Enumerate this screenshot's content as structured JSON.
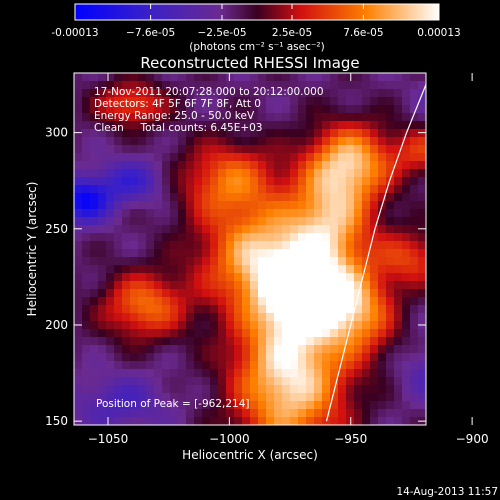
{
  "chart_data": {
    "type": "heatmap",
    "title": "Reconstructed RHESSI Image",
    "xlabel": "Heliocentric X (arcsec)",
    "ylabel": "Heliocentric Y (arcsec)",
    "xlim": [
      -1064,
      -919
    ],
    "ylim": [
      148,
      331
    ],
    "xticks": [
      -1050,
      -1000,
      -950,
      -900
    ],
    "yticks": [
      150,
      200,
      250,
      300
    ],
    "colorbar": {
      "min": -0.00013,
      "max": 0.00013,
      "ticks": [
        -0.00013,
        -7.6e-05,
        -2.5e-05,
        2.5e-05,
        7.6e-05,
        0.00013
      ],
      "tick_labels": [
        "-0.00013",
        "−7.6e-05",
        "−2.5e-05",
        "2.5e-05",
        "7.6e-05",
        "0.00013"
      ],
      "unit_label": "(photons cm⁻² s⁻¹ asec⁻²)"
    },
    "info_lines": [
      "17-Nov-2011 20:07:28.000 to 20:12:00.000",
      "Detectors: 4F 5F 6F 7F 8F, Att 0",
      "Energy Range: 25.0 - 50.0 keV",
      "Clean     Total counts: 6.45E+03"
    ],
    "peak_label": "Position of Peak = [-962,214]",
    "peak": [
      -962,
      214
    ],
    "limb_curve": [
      [
        -960,
        150
      ],
      [
        -955,
        175
      ],
      [
        -950,
        200
      ],
      [
        -945,
        225
      ],
      [
        -940,
        250
      ],
      [
        -934,
        275
      ],
      [
        -927,
        300
      ],
      [
        -919,
        325
      ]
    ],
    "sources": [
      {
        "x": -975,
        "y": 175,
        "sx": 16,
        "sy": 30,
        "amp": 1.0
      },
      {
        "x": -965,
        "y": 214,
        "sx": 13,
        "sy": 13,
        "amp": 0.9
      },
      {
        "x": -985,
        "y": 235,
        "sx": 18,
        "sy": 18,
        "amp": 0.85
      },
      {
        "x": -958,
        "y": 255,
        "sx": 12,
        "sy": 20,
        "amp": 0.7
      },
      {
        "x": -950,
        "y": 285,
        "sx": 12,
        "sy": 14,
        "amp": 0.75
      },
      {
        "x": -1000,
        "y": 275,
        "sx": 14,
        "sy": 14,
        "amp": 0.6
      },
      {
        "x": -1035,
        "y": 210,
        "sx": 12,
        "sy": 12,
        "amp": 0.6
      },
      {
        "x": -945,
        "y": 205,
        "sx": 10,
        "sy": 16,
        "amp": 0.5
      },
      {
        "x": -925,
        "y": 235,
        "sx": 10,
        "sy": 10,
        "amp": 0.45
      },
      {
        "x": -1040,
        "y": 315,
        "sx": 10,
        "sy": 8,
        "amp": 0.5
      },
      {
        "x": -920,
        "y": 290,
        "sx": 9,
        "sy": 9,
        "amp": 0.4
      },
      {
        "x": -1060,
        "y": 265,
        "sx": 8,
        "sy": 8,
        "amp": -0.7
      },
      {
        "x": -1040,
        "y": 275,
        "sx": 10,
        "sy": 8,
        "amp": -0.4
      },
      {
        "x": -1045,
        "y": 160,
        "sx": 14,
        "sy": 10,
        "amp": -0.3
      },
      {
        "x": -910,
        "y": 175,
        "sx": 12,
        "sy": 10,
        "amp": -0.35
      },
      {
        "x": -905,
        "y": 320,
        "sx": 10,
        "sy": 8,
        "amp": -0.3
      }
    ]
  },
  "footer": {
    "date": "14-Aug-2013 11:57"
  },
  "colors": {
    "background": "#000000",
    "text": "#ffffff",
    "limb": "#ffffff"
  }
}
